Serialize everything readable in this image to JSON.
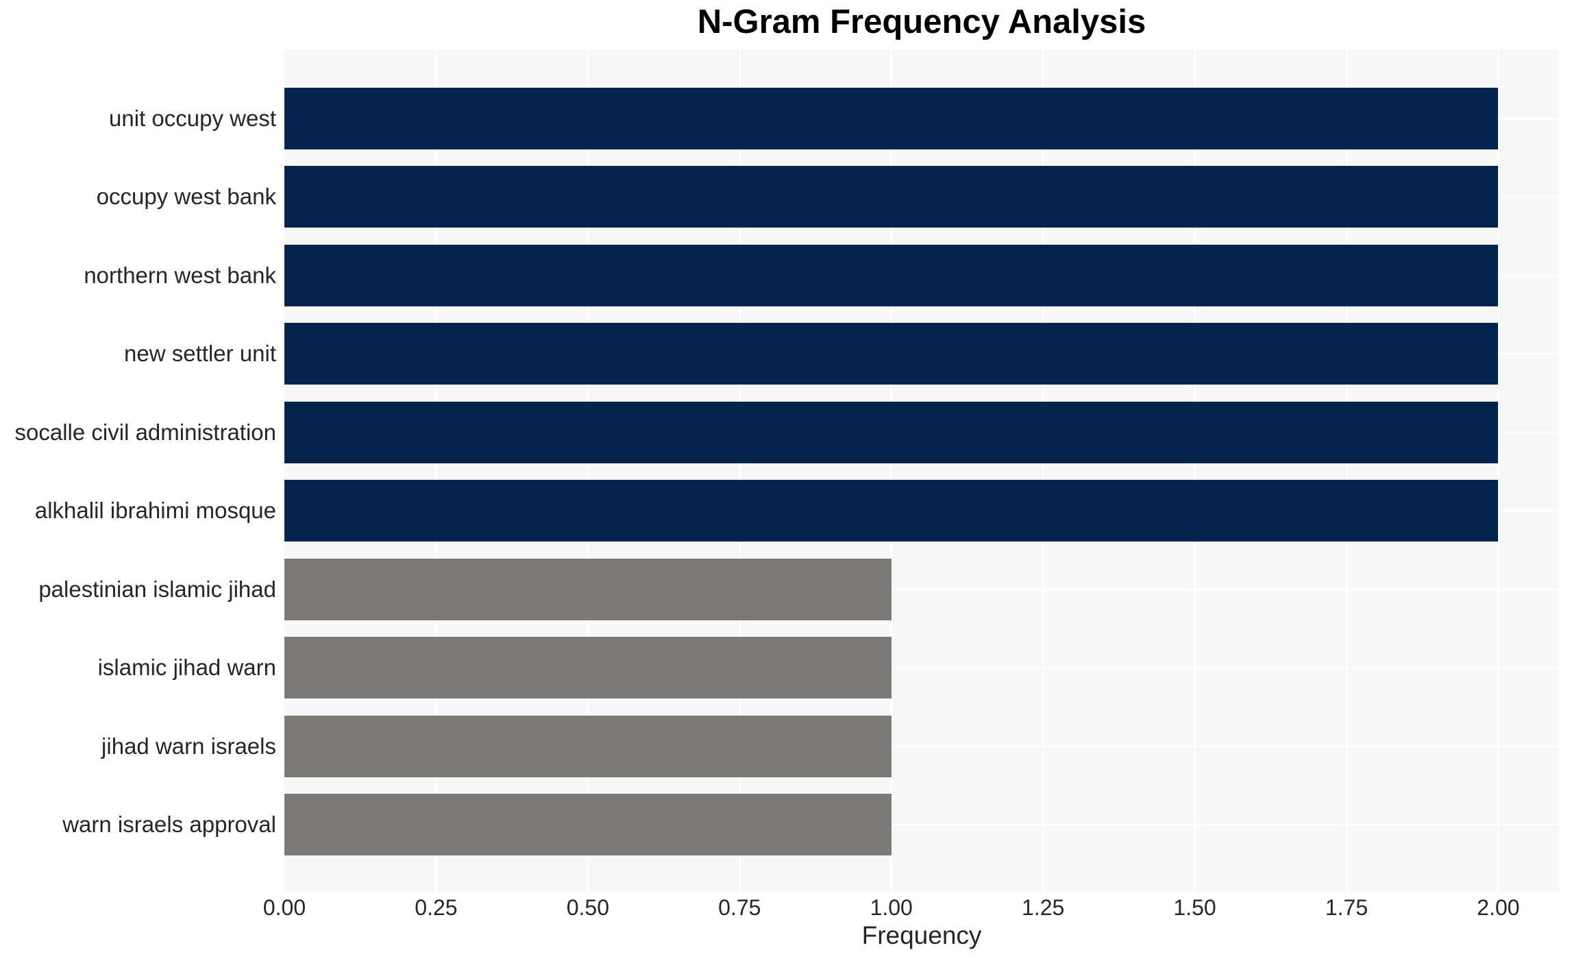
{
  "title": "N-Gram Frequency Analysis",
  "x_axis": {
    "label": "Frequency",
    "tick_labels": [
      "0.00",
      "0.25",
      "0.50",
      "0.75",
      "1.00",
      "1.25",
      "1.50",
      "1.75",
      "2.00"
    ]
  },
  "colors": {
    "bar_navy": "#02244d",
    "bar_gray": "#7b7a77",
    "panel_background": "#f7f7f7",
    "gridline": "#ffffff",
    "axis_text": "#262626",
    "title_text": "#000000",
    "page_background": "#ffffff"
  },
  "chart_data": {
    "type": "bar",
    "orientation": "horizontal",
    "title": "N-Gram Frequency Analysis",
    "xlabel": "Frequency",
    "ylabel": "",
    "categories": [
      "unit occupy west",
      "occupy west bank",
      "northern west bank",
      "new settler unit",
      "socalle civil administration",
      "alkhalil ibrahimi mosque",
      "palestinian islamic jihad",
      "islamic jihad warn",
      "jihad warn israels",
      "warn israels approval"
    ],
    "values": [
      2,
      2,
      2,
      2,
      2,
      2,
      1,
      1,
      1,
      1
    ],
    "bar_colors": [
      "#02244d",
      "#02244d",
      "#02244d",
      "#02244d",
      "#02244d",
      "#02244d",
      "#7b7a77",
      "#7b7a77",
      "#7b7a77",
      "#7b7a77"
    ],
    "xlim": [
      0,
      2.1
    ],
    "xticks": [
      0,
      0.25,
      0.5,
      0.75,
      1.0,
      1.25,
      1.5,
      1.75,
      2.0
    ],
    "xtick_labels": [
      "0.00",
      "0.25",
      "0.50",
      "0.75",
      "1.00",
      "1.25",
      "1.50",
      "1.75",
      "2.00"
    ],
    "grid": true,
    "legend_position": "none"
  }
}
